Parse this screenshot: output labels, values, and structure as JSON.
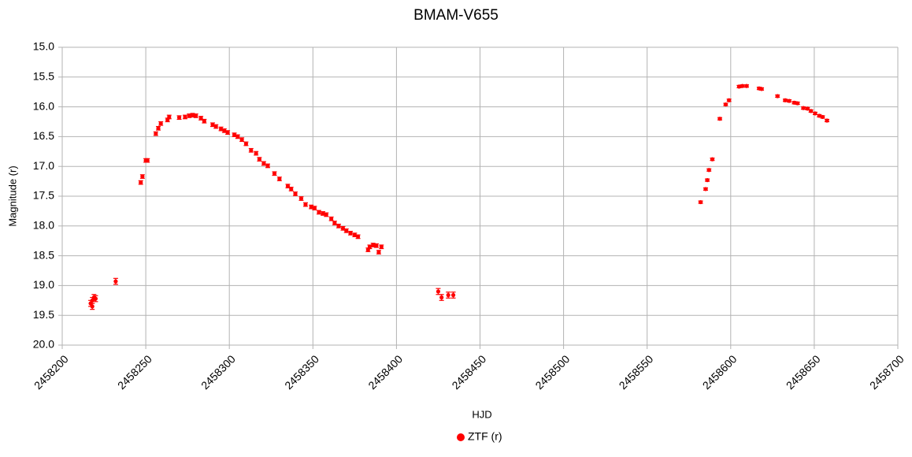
{
  "chart_data": {
    "type": "scatter",
    "title": "BMAM-V655",
    "x_label": "HJD",
    "y_label": "Magnitude (r)",
    "xlim": [
      2458200,
      2458700
    ],
    "xticks": [
      2458200,
      2458250,
      2458300,
      2458350,
      2458400,
      2458450,
      2458500,
      2458550,
      2458600,
      2458650,
      2458700
    ],
    "ylim": [
      15,
      20
    ],
    "y_inverted": true,
    "yticks": [
      {
        "value": 15,
        "label": "15.0"
      },
      15.5,
      {
        "value": 16,
        "label": "16.0"
      },
      16.5,
      {
        "value": 17,
        "label": "17.0"
      },
      17.5,
      {
        "value": 18,
        "label": "18.0"
      },
      18.5,
      {
        "value": 19,
        "label": "19.0"
      },
      19.5,
      {
        "value": 20,
        "label": "20.0"
      }
    ],
    "grid": true,
    "legend": "bottom",
    "series": [
      {
        "name": "ZTF (r)",
        "color": "#ff0000",
        "x": [
          2458217,
          2458218,
          2458219,
          2458218,
          2458220,
          2458232,
          2458247,
          2458248,
          2458250,
          2458251,
          2458256,
          2458257.5,
          2458259,
          2458263,
          2458264,
          2458270,
          2458273.5,
          2458276,
          2458278,
          2458280,
          2458283,
          2458285,
          2458290,
          2458292,
          2458295,
          2458297,
          2458299,
          2458303,
          2458305,
          2458307.5,
          2458310,
          2458313,
          2458316,
          2458318,
          2458320.6,
          2458323,
          2458327,
          2458330,
          2458335,
          2458337,
          2458339.5,
          2458343,
          2458345.6,
          2458349,
          2458351,
          2458353.6,
          2458356,
          2458358,
          2458361,
          2458363,
          2458365.4,
          2458368,
          2458370,
          2458372.5,
          2458375,
          2458377,
          2458383,
          2458384,
          2458386,
          2458388,
          2458389.4,
          2458391,
          2458425,
          2458427,
          2458431,
          2458434,
          2458582,
          2458585,
          2458586,
          2458587,
          2458589,
          2458593.5,
          2458597,
          2458599,
          2458605,
          2458607,
          2458609.5,
          2458617,
          2458618.5,
          2458628,
          2458632.6,
          2458635,
          2458638,
          2458640,
          2458643.5,
          2458646,
          2458648,
          2458650.5,
          2458653,
          2458655,
          2458657.6
        ],
        "values": [
          19.3,
          19.25,
          19.2,
          19.35,
          19.22,
          18.93,
          17.27,
          17.17,
          16.9,
          16.9,
          16.45,
          16.36,
          16.28,
          16.22,
          16.17,
          16.18,
          16.17,
          16.15,
          16.14,
          16.15,
          16.19,
          16.24,
          16.3,
          16.33,
          16.37,
          16.4,
          16.43,
          16.47,
          16.5,
          16.55,
          16.62,
          16.73,
          16.78,
          16.88,
          16.95,
          16.99,
          17.12,
          17.21,
          17.33,
          17.38,
          17.46,
          17.54,
          17.64,
          17.68,
          17.7,
          17.77,
          17.79,
          17.81,
          17.88,
          17.95,
          18.0,
          18.04,
          18.08,
          18.12,
          18.15,
          18.18,
          18.4,
          18.35,
          18.32,
          18.33,
          18.44,
          18.35,
          19.1,
          19.2,
          19.16,
          19.16,
          17.6,
          17.38,
          17.23,
          17.06,
          16.88,
          16.2,
          15.96,
          15.89,
          15.66,
          15.65,
          15.65,
          15.69,
          15.7,
          15.82,
          15.89,
          15.9,
          15.93,
          15.94,
          16.02,
          16.03,
          16.07,
          16.11,
          16.15,
          16.17,
          16.23
        ],
        "errors": [
          0.05,
          0.05,
          0.05,
          0.05,
          0.05,
          0.05,
          0.03,
          0.03,
          0.03,
          0.03,
          0.03,
          0.03,
          0.03,
          0.03,
          0.03,
          0.03,
          0.03,
          0.03,
          0.03,
          0.03,
          0.03,
          0.03,
          0.03,
          0.03,
          0.03,
          0.03,
          0.03,
          0.03,
          0.03,
          0.03,
          0.03,
          0.03,
          0.03,
          0.03,
          0.03,
          0.03,
          0.03,
          0.03,
          0.03,
          0.03,
          0.03,
          0.03,
          0.03,
          0.03,
          0.03,
          0.03,
          0.03,
          0.03,
          0.03,
          0.03,
          0.03,
          0.03,
          0.03,
          0.03,
          0.03,
          0.03,
          0.03,
          0.03,
          0.03,
          0.03,
          0.03,
          0.03,
          0.05,
          0.05,
          0.05,
          0.05,
          0.02,
          0.02,
          0.02,
          0.02,
          0.02,
          0.02,
          0.02,
          0.02,
          0.02,
          0.02,
          0.02,
          0.02,
          0.02,
          0.02,
          0.02,
          0.02,
          0.02,
          0.02,
          0.02,
          0.02,
          0.02,
          0.02,
          0.02,
          0.02,
          0.02
        ]
      }
    ]
  }
}
